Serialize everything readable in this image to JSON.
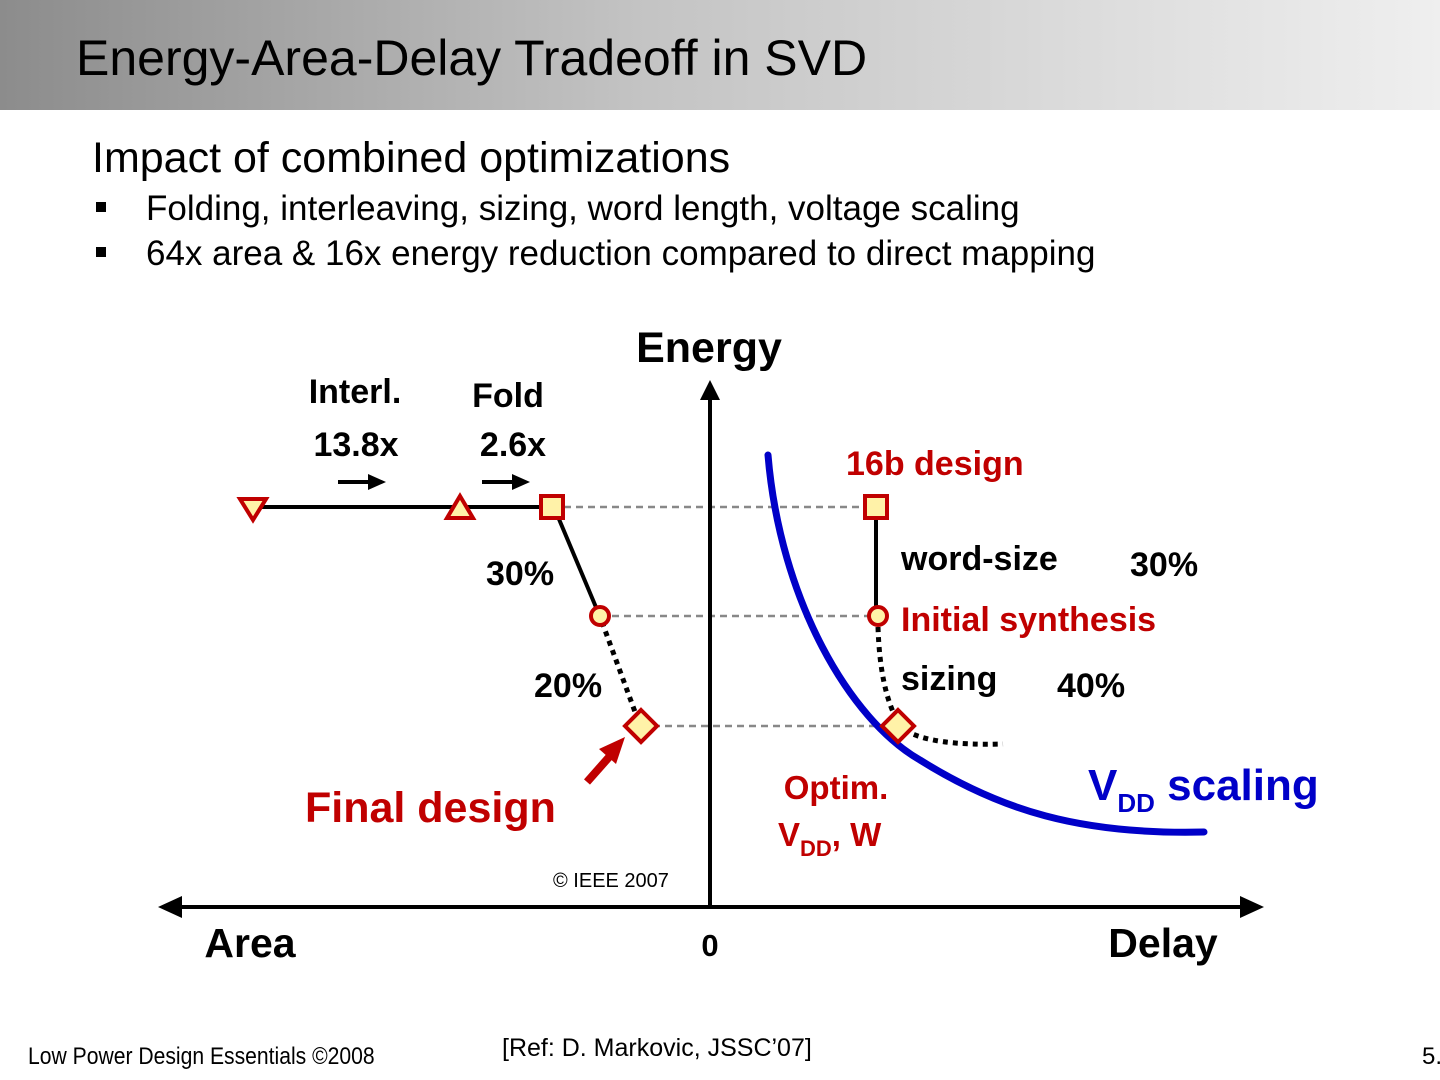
{
  "slide": {
    "title": "Energy-Area-Delay Tradeoff in SVD",
    "subtitle": "Impact of combined optimizations",
    "bullets": [
      "Folding, interleaving, sizing, word length, voltage scaling",
      "64x area & 16x energy reduction compared to direct mapping"
    ]
  },
  "diagram": {
    "axis_energy": "Energy",
    "axis_area": "Area",
    "axis_delay": "Delay",
    "origin": "0",
    "interl_label": "Interl.",
    "interl_value": "13.8x",
    "fold_label": "Fold",
    "fold_value": "2.6x",
    "design_16b": "16b design",
    "word_size": "word-size",
    "word_size_pct": "30%",
    "area_pct_1": "30%",
    "initial_synthesis": "Initial synthesis",
    "sizing": "sizing",
    "sizing_pct": "40%",
    "area_pct_2": "20%",
    "final_design": "Final design",
    "optim_line1": "Optim.",
    "optim_v": "V",
    "optim_sub": "DD",
    "optim_rest": ", W",
    "vdd_v": "V",
    "vdd_sub": "DD",
    "vdd_rest": " scaling",
    "copyright": "© IEEE 2007"
  },
  "colors": {
    "red": "#c00000",
    "blue": "#0000c8",
    "marker_fill": "#fff2a8"
  },
  "footer": {
    "left": "Low Power Design Essentials ©2008",
    "ref": "[Ref: D. Markovic, JSSC’07]",
    "page": "5."
  }
}
